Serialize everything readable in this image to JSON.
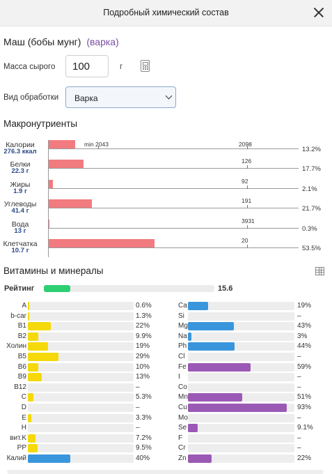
{
  "dialog": {
    "title": "Подробный химический состав"
  },
  "food": {
    "name": "Маш (бобы мунг)",
    "mode": "(варка)"
  },
  "mass": {
    "label": "Масса сырого",
    "value": "100",
    "unit": "г"
  },
  "processing": {
    "label": "Вид обработки",
    "selected": "Варка"
  },
  "macros": {
    "title": "Макронутриенты",
    "min_label": "min 2043",
    "max_label": "2098",
    "items": [
      {
        "name": "Калории",
        "value": "276.3 ккал",
        "norm": "",
        "pct": "13.2%",
        "fraction": 0.132
      },
      {
        "name": "Белки",
        "value": "22.3 г",
        "norm": "126",
        "pct": "17.7%",
        "fraction": 0.177
      },
      {
        "name": "Жиры",
        "value": "1.9 г",
        "norm": "92",
        "pct": "2.1%",
        "fraction": 0.021
      },
      {
        "name": "Углеводы",
        "value": "41.4 г",
        "norm": "191",
        "pct": "21.7%",
        "fraction": 0.217
      },
      {
        "name": "Вода",
        "value": "13 г",
        "norm": "3931",
        "pct": "0.3%",
        "fraction": 0.003
      },
      {
        "name": "Клетчатка",
        "value": "10.7 г",
        "norm": "20",
        "pct": "53.5%",
        "fraction": 0.535
      }
    ]
  },
  "vitamins": {
    "title": "Витамины и минералы",
    "rating_label": "Рейтинг",
    "rating_value": "15.6",
    "rating_fraction": 0.156,
    "colors": {
      "vitamin": "#f5d90a",
      "mineral": "#3a96dc",
      "trace": "#9b59b6",
      "rating": "#2dcf72",
      "macro": "#f17b7f"
    },
    "left": [
      {
        "name": "A",
        "pct": "0.6%",
        "fraction": 0.006
      },
      {
        "name": "b-car",
        "pct": "1.3%",
        "fraction": 0.013
      },
      {
        "name": "B1",
        "pct": "22%",
        "fraction": 0.22
      },
      {
        "name": "B2",
        "pct": "9.9%",
        "fraction": 0.099
      },
      {
        "name": "Холин",
        "pct": "19%",
        "fraction": 0.19
      },
      {
        "name": "B5",
        "pct": "29%",
        "fraction": 0.29
      },
      {
        "name": "B6",
        "pct": "10%",
        "fraction": 0.1
      },
      {
        "name": "B9",
        "pct": "13%",
        "fraction": 0.13
      },
      {
        "name": "B12",
        "pct": "–",
        "fraction": 0
      },
      {
        "name": "C",
        "pct": "5.3%",
        "fraction": 0.053
      },
      {
        "name": "D",
        "pct": "–",
        "fraction": 0
      },
      {
        "name": "E",
        "pct": "3.3%",
        "fraction": 0.033
      },
      {
        "name": "H",
        "pct": "–",
        "fraction": 0
      },
      {
        "name": "вит.K",
        "pct": "7.2%",
        "fraction": 0.072
      },
      {
        "name": "PP",
        "pct": "9.5%",
        "fraction": 0.095
      },
      {
        "name": "Калий",
        "pct": "40%",
        "fraction": 0.4,
        "kind": "mineral"
      }
    ],
    "right": [
      {
        "name": "Ca",
        "pct": "19%",
        "fraction": 0.19,
        "kind": "mineral"
      },
      {
        "name": "Si",
        "pct": "–",
        "fraction": 0,
        "kind": "mineral"
      },
      {
        "name": "Mg",
        "pct": "43%",
        "fraction": 0.43,
        "kind": "mineral"
      },
      {
        "name": "Na",
        "pct": "3%",
        "fraction": 0.03,
        "kind": "mineral"
      },
      {
        "name": "Ph",
        "pct": "44%",
        "fraction": 0.44,
        "kind": "mineral"
      },
      {
        "name": "Cl",
        "pct": "–",
        "fraction": 0,
        "kind": "mineral"
      },
      {
        "name": "Fe",
        "pct": "59%",
        "fraction": 0.59,
        "kind": "trace"
      },
      {
        "name": "I",
        "pct": "–",
        "fraction": 0,
        "kind": "trace"
      },
      {
        "name": "Co",
        "pct": "–",
        "fraction": 0,
        "kind": "trace"
      },
      {
        "name": "Mn",
        "pct": "51%",
        "fraction": 0.51,
        "kind": "trace"
      },
      {
        "name": "Cu",
        "pct": "93%",
        "fraction": 0.93,
        "kind": "trace"
      },
      {
        "name": "Mo",
        "pct": "–",
        "fraction": 0,
        "kind": "trace"
      },
      {
        "name": "Se",
        "pct": "9.1%",
        "fraction": 0.091,
        "kind": "trace"
      },
      {
        "name": "F",
        "pct": "–",
        "fraction": 0,
        "kind": "trace"
      },
      {
        "name": "Cr",
        "pct": "–",
        "fraction": 0,
        "kind": "trace"
      },
      {
        "name": "Zn",
        "pct": "22%",
        "fraction": 0.22,
        "kind": "trace"
      }
    ]
  },
  "icons": {
    "close": "close-icon",
    "calculator": "calculator-icon",
    "dropdown": "chevron-down-icon",
    "table": "table-icon"
  }
}
